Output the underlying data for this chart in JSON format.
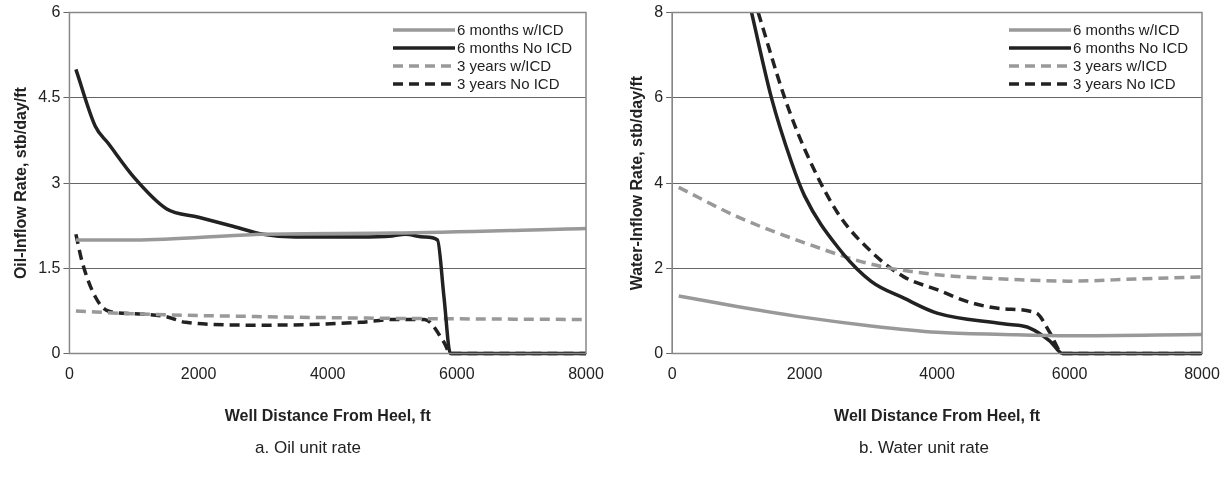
{
  "chart_data": [
    {
      "type": "line",
      "xlabel": "Well Distance From Heel, ft",
      "ylabel": "Oil-Inflow Rate, stb/day/ft",
      "annotations": [
        "a. Oil unit rate"
      ],
      "xlim": [
        0,
        8000
      ],
      "xticks": [
        0,
        2000,
        4000,
        6000,
        8000
      ],
      "ylim": [
        0,
        6
      ],
      "yticks": [
        0,
        1.5,
        3,
        4.5,
        6
      ],
      "grid": "y",
      "legend": "top right",
      "marker": "none",
      "series": [
        {
          "name": "6 months w/ICD",
          "color": "#999999",
          "line_style": "solid",
          "x": [
            100,
            1000,
            3000,
            5000,
            8000
          ],
          "values": [
            2.0,
            2.0,
            2.1,
            2.12,
            2.2
          ]
        },
        {
          "name": "6 months No ICD",
          "color": "#222222",
          "line_style": "solid",
          "x": [
            100,
            400,
            600,
            1000,
            1500,
            2000,
            2500,
            3000,
            3500,
            4500,
            5000,
            5200,
            5500,
            5700,
            5800,
            5900,
            8000
          ],
          "values": [
            5.0,
            4.0,
            3.7,
            3.1,
            2.55,
            2.4,
            2.25,
            2.1,
            2.05,
            2.05,
            2.07,
            2.1,
            2.05,
            2.0,
            1.0,
            0,
            0
          ]
        },
        {
          "name": "3 years w/ICD",
          "color": "#999999",
          "line_style": "dashed",
          "x": [
            100,
            1000,
            3000,
            5000,
            8000
          ],
          "values": [
            0.75,
            0.7,
            0.65,
            0.62,
            0.6
          ]
        },
        {
          "name": "3 years No ICD",
          "color": "#222222",
          "line_style": "dashed",
          "x": [
            100,
            200,
            400,
            600,
            1000,
            1500,
            1800,
            3000,
            4500,
            5000,
            5500,
            5800,
            5900,
            8000
          ],
          "values": [
            2.1,
            1.6,
            1.0,
            0.75,
            0.7,
            0.65,
            0.55,
            0.5,
            0.55,
            0.6,
            0.6,
            0.2,
            0,
            0
          ]
        }
      ]
    },
    {
      "type": "line",
      "xlabel": "Well Distance From Heel, ft",
      "ylabel": "Water-Inflow Rate, stb/day/ft",
      "annotations": [
        "b. Water unit rate"
      ],
      "xlim": [
        0,
        8000
      ],
      "xticks": [
        0,
        2000,
        4000,
        6000,
        8000
      ],
      "ylim": [
        0,
        8
      ],
      "yticks": [
        0,
        2,
        4,
        6,
        8
      ],
      "grid": "y",
      "legend": "top right",
      "marker": "none",
      "series": [
        {
          "name": "6 months w/ICD",
          "color": "#999999",
          "line_style": "solid",
          "x": [
            100,
            1000,
            2000,
            3000,
            4000,
            5000,
            6000,
            8000
          ],
          "values": [
            1.35,
            1.1,
            0.85,
            0.65,
            0.5,
            0.45,
            0.42,
            0.45
          ]
        },
        {
          "name": "6 months No ICD",
          "color": "#222222",
          "line_style": "solid",
          "x": [
            1200,
            1500,
            1800,
            2000,
            2500,
            3000,
            3500,
            4000,
            5000,
            5400,
            5700,
            5900,
            8000
          ],
          "values": [
            8,
            6,
            4.5,
            3.7,
            2.5,
            1.7,
            1.3,
            0.95,
            0.7,
            0.6,
            0.3,
            0,
            0
          ]
        },
        {
          "name": "3 years w/ICD",
          "color": "#999999",
          "line_style": "dashed",
          "x": [
            100,
            1000,
            2000,
            3000,
            4000,
            5000,
            6000,
            7000,
            8000
          ],
          "values": [
            3.9,
            3.2,
            2.6,
            2.1,
            1.85,
            1.75,
            1.7,
            1.75,
            1.8
          ]
        },
        {
          "name": "3 years No ICD",
          "color": "#222222",
          "line_style": "dashed",
          "x": [
            1300,
            1700,
            2000,
            2500,
            3000,
            3500,
            4000,
            4500,
            5000,
            5500,
            5700,
            5900,
            8000
          ],
          "values": [
            8,
            6,
            4.8,
            3.3,
            2.4,
            1.8,
            1.5,
            1.2,
            1.05,
            0.95,
            0.5,
            0,
            0
          ]
        }
      ]
    }
  ]
}
